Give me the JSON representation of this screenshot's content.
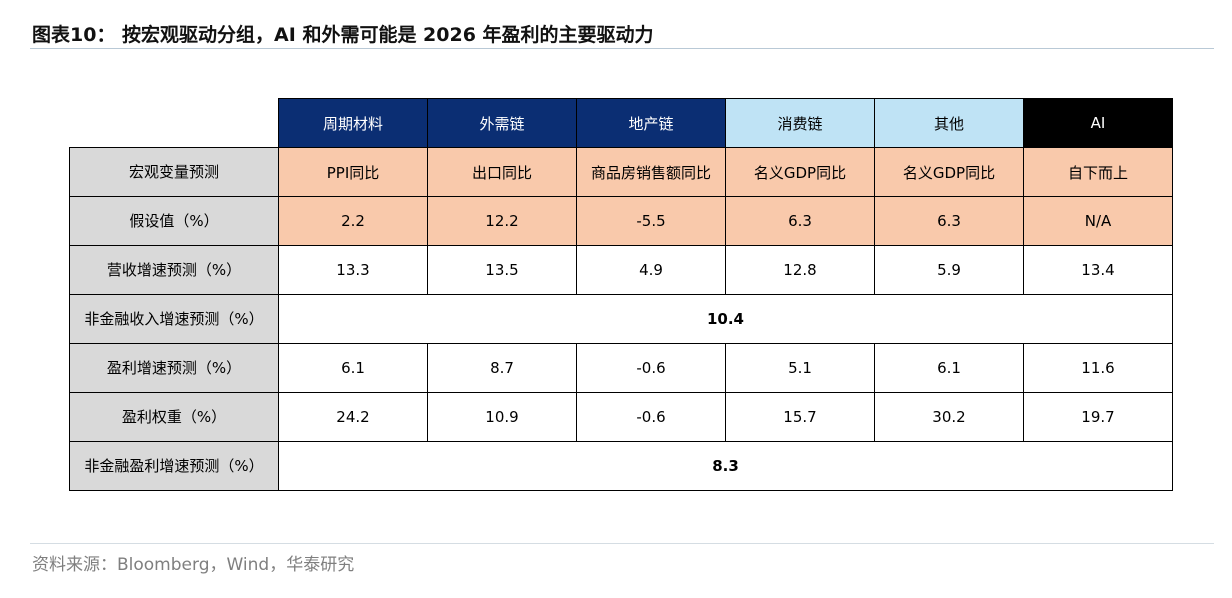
{
  "title": "图表10： 按宏观驱动分组，AI 和外需可能是 2026 年盈利的主要驱动力",
  "source": "资料来源：Bloomberg，Wind，华泰研究",
  "table": {
    "columns": [
      {
        "label": "周期材料",
        "style": "blue"
      },
      {
        "label": "外需链",
        "style": "blue"
      },
      {
        "label": "地产链",
        "style": "blue"
      },
      {
        "label": "消费链",
        "style": "light"
      },
      {
        "label": "其他",
        "style": "light"
      },
      {
        "label": "AI",
        "style": "black"
      }
    ],
    "rows": [
      {
        "label": "宏观变量预测",
        "cells": [
          "PPI同比",
          "出口同比",
          "商品房销售额同比",
          "名义GDP同比",
          "名义GDP同比",
          "自下而上"
        ]
      },
      {
        "label": "假设值（%）",
        "cells": [
          "2.2",
          "12.2",
          "-5.5",
          "6.3",
          "6.3",
          "N/A"
        ]
      },
      {
        "label": "营收增速预测（%）",
        "cells": [
          "13.3",
          "13.5",
          "4.9",
          "12.8",
          "5.9",
          "13.4"
        ]
      },
      {
        "label": "非金融收入增速预测（%）",
        "merged": "10.4"
      },
      {
        "label": "盈利增速预测（%）",
        "cells": [
          "6.1",
          "8.7",
          "-0.6",
          "5.1",
          "6.1",
          "11.6"
        ]
      },
      {
        "label": "盈利权重（%）",
        "cells": [
          "24.2",
          "10.9",
          "-0.6",
          "15.7",
          "30.2",
          "19.7"
        ]
      },
      {
        "label": "非金融盈利增速预测（%）",
        "merged": "8.3"
      }
    ]
  },
  "colors": {
    "header_blue": "#0b2e73",
    "header_light": "#bfe3f5",
    "header_black": "#000000",
    "assumption_peach": "#f9c9ab",
    "row_label_gray": "#d9d9d9"
  }
}
